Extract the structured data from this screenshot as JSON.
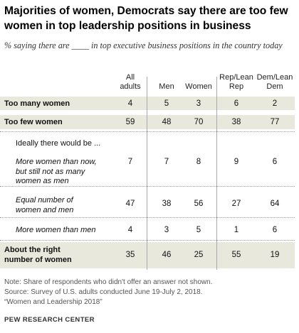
{
  "chart_data": {
    "type": "table",
    "title": "Majorities of women, Democrats say there are too few women in top leadership positions in business",
    "subtitle": "% saying there are ____ in top executive business positions in the country today",
    "columns": [
      "All adults",
      "Men",
      "Women",
      "Rep/Lean Rep",
      "Dem/Lean Dem"
    ],
    "rows": [
      {
        "label": "Too many women",
        "style": "bold",
        "values": [
          "4",
          "5",
          "3",
          "6",
          "2"
        ]
      },
      {
        "label": "Too few women",
        "style": "bold",
        "values": [
          "59",
          "48",
          "70",
          "38",
          "77"
        ]
      },
      {
        "label": "Ideally there would be ...",
        "style": "normal",
        "values": []
      },
      {
        "label": "More women than now, but still not as many women as men",
        "style": "italic",
        "values": [
          "7",
          "7",
          "8",
          "9",
          "6"
        ]
      },
      {
        "label": "Equal number of women and men",
        "style": "italic",
        "values": [
          "47",
          "38",
          "56",
          "27",
          "64"
        ]
      },
      {
        "label": "More women than men",
        "style": "italic",
        "values": [
          "4",
          "3",
          "5",
          "1",
          "6"
        ]
      },
      {
        "label": "About the right number of women",
        "style": "bold",
        "values": [
          "35",
          "46",
          "25",
          "55",
          "19"
        ]
      }
    ]
  },
  "footer": {
    "note": "Note: Share of respondents who didn't offer an answer not shown.",
    "source": "Source: Survey of U.S. adults conducted June 19-July 2, 2018.",
    "report": "“Women and Leadership 2018”",
    "brand": "PEW RESEARCH CENTER"
  }
}
